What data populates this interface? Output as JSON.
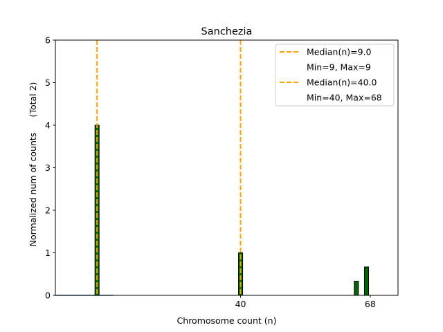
{
  "chart_data": {
    "type": "bar",
    "title": "Sanchezia",
    "xlabel": "Chromosome count (n)",
    "ylabel": "Normalized num of counts",
    "ylabel_total": "(Total 2)",
    "xlim": [
      0,
      74
    ],
    "ylim": [
      0,
      6
    ],
    "yticks": [
      0,
      1,
      2,
      3,
      4,
      5,
      6
    ],
    "xticks": [
      40,
      68
    ],
    "bar_width": 0.9,
    "bars": [
      {
        "x": 9,
        "value": 4.0
      },
      {
        "x": 40,
        "value": 1.0
      },
      {
        "x": 65,
        "value": 0.333
      },
      {
        "x": 67.2,
        "value": 0.667
      }
    ],
    "baseline_segment": [
      0,
      12.5
    ],
    "medians": [
      {
        "x": 9,
        "label": "Median(n)=9.0",
        "range_label": "Min=9, Max=9"
      },
      {
        "x": 40,
        "label": "Median(n)=40.0",
        "range_label": "Min=40, Max=68"
      }
    ],
    "legend_position": "top-right",
    "colors": {
      "bar_fill": "#006400",
      "bar_edge": "#000000",
      "median_line": "#ffa500",
      "baseline": "#4a7fb5",
      "axis": "#000000"
    }
  }
}
